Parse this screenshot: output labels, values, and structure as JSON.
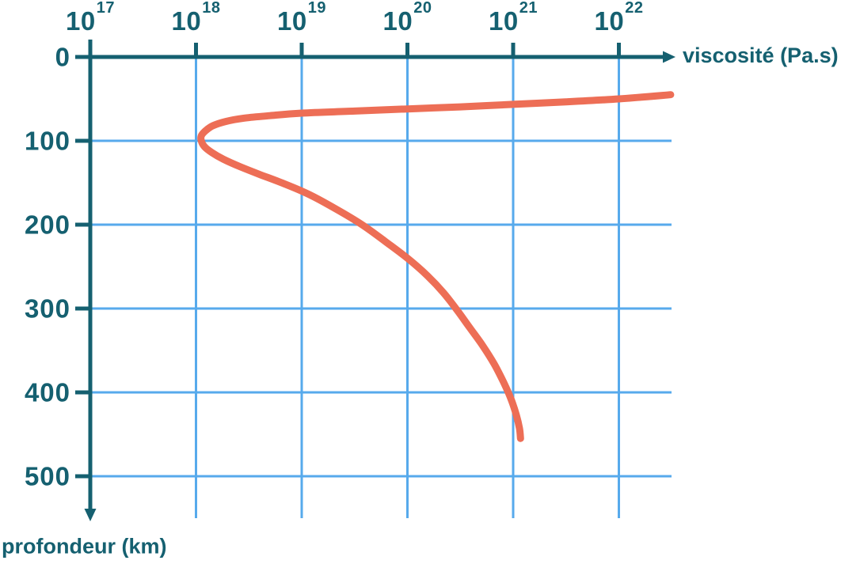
{
  "chart_data": {
    "type": "line",
    "xlabel": "viscosité (Pa.s)",
    "ylabel": "profondeur (km)",
    "x_scale": "log10",
    "x_ticks": [
      {
        "base": "10",
        "exponent": "17"
      },
      {
        "base": "10",
        "exponent": "18"
      },
      {
        "base": "10",
        "exponent": "19"
      },
      {
        "base": "10",
        "exponent": "20"
      },
      {
        "base": "10",
        "exponent": "21"
      },
      {
        "base": "10",
        "exponent": "22"
      }
    ],
    "y_ticks": [
      "0",
      "100",
      "200",
      "300",
      "400",
      "500"
    ],
    "x_grid_exponents": [
      18,
      19,
      20,
      21,
      22
    ],
    "y_grid_depths": [
      100,
      200,
      300,
      400,
      500
    ],
    "x_axis_range_exponents": [
      17,
      22.55
    ],
    "y_axis_range_km": [
      0,
      550
    ],
    "y_axis_direction": "down",
    "grid": true,
    "legend": "none",
    "colors": {
      "axis": "#156070",
      "text": "#156070",
      "grid": "#57aaec",
      "curve": "#ed6e56"
    },
    "curve": {
      "description_points": "pairs of [log10(viscosity Pa.s), depth km] read from the plotted curve",
      "points": [
        [
          22.49,
          45
        ],
        [
          22.0,
          50
        ],
        [
          21.5,
          53.5
        ],
        [
          21.0,
          56.5
        ],
        [
          20.5,
          59.5
        ],
        [
          20.0,
          62
        ],
        [
          19.5,
          64.5
        ],
        [
          19.0,
          67
        ],
        [
          18.7,
          70
        ],
        [
          18.45,
          73
        ],
        [
          18.28,
          77
        ],
        [
          18.16,
          82
        ],
        [
          18.09,
          88
        ],
        [
          18.05,
          94
        ],
        [
          18.05,
          100
        ],
        [
          18.08,
          107
        ],
        [
          18.15,
          114
        ],
        [
          18.26,
          122
        ],
        [
          18.42,
          131
        ],
        [
          18.6,
          140
        ],
        [
          18.83,
          151
        ],
        [
          19.07,
          164
        ],
        [
          19.32,
          181
        ],
        [
          19.57,
          200
        ],
        [
          19.79,
          220
        ],
        [
          20.0,
          240
        ],
        [
          20.19,
          261
        ],
        [
          20.34,
          281
        ],
        [
          20.47,
          302
        ],
        [
          20.59,
          323
        ],
        [
          20.71,
          344
        ],
        [
          20.82,
          366
        ],
        [
          20.91,
          388
        ],
        [
          20.98,
          408
        ],
        [
          21.03,
          427
        ],
        [
          21.06,
          443
        ],
        [
          21.07,
          455
        ]
      ]
    }
  }
}
